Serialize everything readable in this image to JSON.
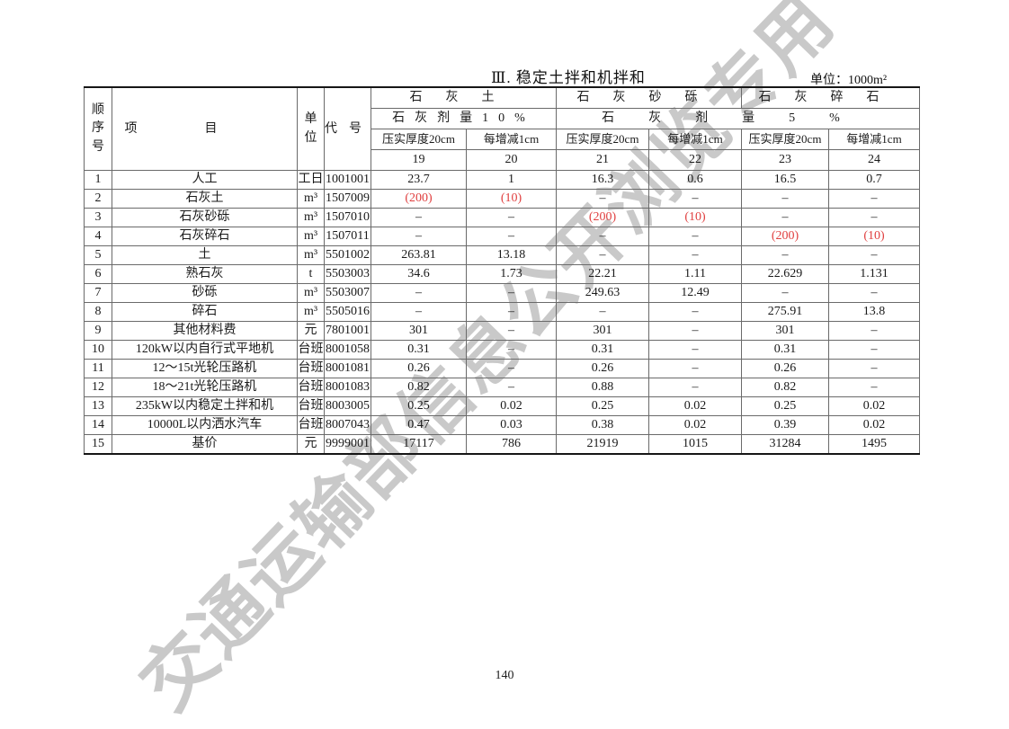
{
  "page": {
    "title": "Ⅲ. 稳定土拌和机拌和",
    "unit_label": "单位：1000m²",
    "page_number": "140",
    "watermark": "交通运输部信息公开浏览专用"
  },
  "table": {
    "header": {
      "seq": "顺序号",
      "item": "项目",
      "unit": "单位",
      "code": "代号",
      "group_lime_soil": "石灰土",
      "group_lime_gravel": "石灰砂砾",
      "group_lime_crushed_stone": "石灰碎石",
      "dosage_10": "石灰剂量10%",
      "dosage_5": "石灰剂量5%",
      "thickness_label": "压实厚度20cm",
      "delta_label": "每增减1cm",
      "column_numbers": [
        "19",
        "20",
        "21",
        "22",
        "23",
        "24"
      ]
    },
    "rows": [
      {
        "seq": "1",
        "item": "人工",
        "unit": "工日",
        "code": "1001001",
        "values": [
          "23.7",
          "1",
          "16.3",
          "0.6",
          "16.5",
          "0.7"
        ]
      },
      {
        "seq": "2",
        "item": "石灰土",
        "unit": "m³",
        "code": "1507009",
        "values": [
          "(200)",
          "(10)",
          "–",
          "–",
          "–",
          "–"
        ]
      },
      {
        "seq": "3",
        "item": "石灰砂砾",
        "unit": "m³",
        "code": "1507010",
        "values": [
          "–",
          "–",
          "(200)",
          "(10)",
          "–",
          "–"
        ]
      },
      {
        "seq": "4",
        "item": "石灰碎石",
        "unit": "m³",
        "code": "1507011",
        "values": [
          "–",
          "–",
          "–",
          "–",
          "(200)",
          "(10)"
        ]
      },
      {
        "seq": "5",
        "item": "土",
        "unit": "m³",
        "code": "5501002",
        "values": [
          "263.81",
          "13.18",
          "–",
          "–",
          "–",
          "–"
        ]
      },
      {
        "seq": "6",
        "item": "熟石灰",
        "unit": "t",
        "code": "5503003",
        "values": [
          "34.6",
          "1.73",
          "22.21",
          "1.11",
          "22.629",
          "1.131"
        ]
      },
      {
        "seq": "7",
        "item": "砂砾",
        "unit": "m³",
        "code": "5503007",
        "values": [
          "–",
          "–",
          "249.63",
          "12.49",
          "–",
          "–"
        ]
      },
      {
        "seq": "8",
        "item": "碎石",
        "unit": "m³",
        "code": "5505016",
        "values": [
          "–",
          "–",
          "–",
          "–",
          "275.91",
          "13.8"
        ]
      },
      {
        "seq": "9",
        "item": "其他材料费",
        "unit": "元",
        "code": "7801001",
        "values": [
          "301",
          "–",
          "301",
          "–",
          "301",
          "–"
        ]
      },
      {
        "seq": "10",
        "item": "120kW以内自行式平地机",
        "unit": "台班",
        "code": "8001058",
        "values": [
          "0.31",
          "–",
          "0.31",
          "–",
          "0.31",
          "–"
        ]
      },
      {
        "seq": "11",
        "item": "12～15t光轮压路机",
        "unit": "台班",
        "code": "8001081",
        "values": [
          "0.26",
          "–",
          "0.26",
          "–",
          "0.26",
          "–"
        ]
      },
      {
        "seq": "12",
        "item": "18～21t光轮压路机",
        "unit": "台班",
        "code": "8001083",
        "values": [
          "0.82",
          "–",
          "0.88",
          "–",
          "0.82",
          "–"
        ]
      },
      {
        "seq": "13",
        "item": "235kW以内稳定土拌和机",
        "unit": "台班",
        "code": "8003005",
        "values": [
          "0.25",
          "0.02",
          "0.25",
          "0.02",
          "0.25",
          "0.02"
        ]
      },
      {
        "seq": "14",
        "item": "10000L以内洒水汽车",
        "unit": "台班",
        "code": "8007043",
        "values": [
          "0.47",
          "0.03",
          "0.38",
          "0.02",
          "0.39",
          "0.02"
        ]
      },
      {
        "seq": "15",
        "item": "基价",
        "unit": "元",
        "code": "9999001",
        "values": [
          "17117",
          "786",
          "21919",
          "1015",
          "31284",
          "1495"
        ]
      }
    ]
  }
}
